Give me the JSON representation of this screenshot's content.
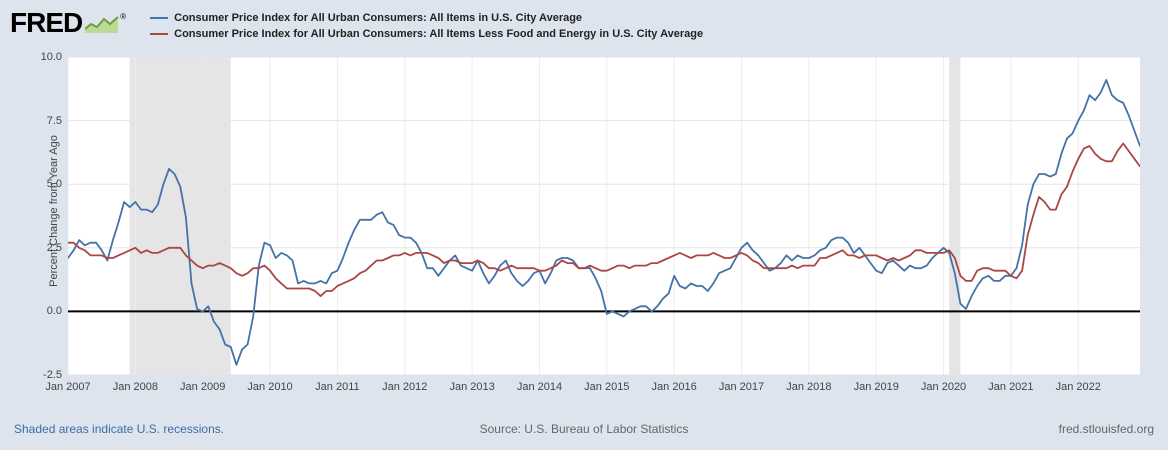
{
  "header": {
    "logo_text": "FRED",
    "registered_mark": "®"
  },
  "legend": {
    "items": [
      {
        "label": "Consumer Price Index for All Urban Consumers: All Items in U.S. City Average",
        "color": "#4572a7"
      },
      {
        "label": "Consumer Price Index for All Urban Consumers: All Items Less Food and Energy in U.S. City Average",
        "color": "#aa4643"
      }
    ]
  },
  "footer": {
    "recession_note": "Shaded areas indicate U.S. recessions.",
    "source": "Source: U.S. Bureau of Labor Statistics",
    "site": "fred.stlouisfed.org"
  },
  "chart_data": {
    "type": "line",
    "title": "",
    "xlabel": "",
    "ylabel": "Percent Change from Year Ago",
    "ylim": [
      -2.5,
      10.0
    ],
    "y_ticks": [
      10.0,
      7.5,
      5.0,
      2.5,
      0.0,
      -2.5
    ],
    "x_start": "2007-01",
    "x_end": "2022-12",
    "frequency": "monthly",
    "x_tick_labels": [
      "Jan 2007",
      "Jan 2008",
      "Jan 2009",
      "Jan 2010",
      "Jan 2011",
      "Jan 2012",
      "Jan 2013",
      "Jan 2014",
      "Jan 2015",
      "Jan 2016",
      "Jan 2017",
      "Jan 2018",
      "Jan 2019",
      "Jan 2020",
      "Jan 2021",
      "Jan 2022"
    ],
    "grid": true,
    "legend_position": "top",
    "recessions": [
      {
        "start": "2007-12",
        "end": "2009-06"
      },
      {
        "start": "2020-02",
        "end": "2020-04"
      }
    ],
    "recession_color": "#e5e5e5",
    "zero_line_color": "#000000",
    "plot_background": "#ffffff",
    "series": [
      {
        "name": "Consumer Price Index for All Urban Consumers: All Items in U.S. City Average",
        "color": "#4572a7",
        "values": [
          2.1,
          2.4,
          2.8,
          2.6,
          2.7,
          2.7,
          2.4,
          2.0,
          2.8,
          3.5,
          4.3,
          4.1,
          4.3,
          4.0,
          4.0,
          3.9,
          4.2,
          5.0,
          5.6,
          5.4,
          4.9,
          3.7,
          1.1,
          0.1,
          0.0,
          0.2,
          -0.4,
          -0.7,
          -1.3,
          -1.4,
          -2.1,
          -1.5,
          -1.3,
          -0.2,
          1.8,
          2.7,
          2.6,
          2.1,
          2.3,
          2.2,
          2.0,
          1.1,
          1.2,
          1.1,
          1.1,
          1.2,
          1.1,
          1.5,
          1.6,
          2.1,
          2.7,
          3.2,
          3.6,
          3.6,
          3.6,
          3.8,
          3.9,
          3.5,
          3.4,
          3.0,
          2.9,
          2.9,
          2.7,
          2.3,
          1.7,
          1.7,
          1.4,
          1.7,
          2.0,
          2.2,
          1.8,
          1.7,
          1.6,
          2.0,
          1.5,
          1.1,
          1.4,
          1.8,
          2.0,
          1.5,
          1.2,
          1.0,
          1.2,
          1.5,
          1.6,
          1.1,
          1.5,
          2.0,
          2.1,
          2.1,
          2.0,
          1.7,
          1.7,
          1.7,
          1.3,
          0.8,
          -0.1,
          0.0,
          -0.1,
          -0.2,
          0.0,
          0.1,
          0.2,
          0.2,
          0.0,
          0.2,
          0.5,
          0.7,
          1.4,
          1.0,
          0.9,
          1.1,
          1.0,
          1.0,
          0.8,
          1.1,
          1.5,
          1.6,
          1.7,
          2.1,
          2.5,
          2.7,
          2.4,
          2.2,
          1.9,
          1.6,
          1.7,
          1.9,
          2.2,
          2.0,
          2.2,
          2.1,
          2.1,
          2.2,
          2.4,
          2.5,
          2.8,
          2.9,
          2.9,
          2.7,
          2.3,
          2.5,
          2.2,
          1.9,
          1.6,
          1.5,
          1.9,
          2.0,
          1.8,
          1.6,
          1.8,
          1.7,
          1.7,
          1.8,
          2.1,
          2.3,
          2.5,
          2.3,
          1.5,
          0.3,
          0.1,
          0.6,
          1.0,
          1.3,
          1.4,
          1.2,
          1.2,
          1.4,
          1.4,
          1.7,
          2.6,
          4.2,
          5.0,
          5.4,
          5.4,
          5.3,
          5.4,
          6.2,
          6.8,
          7.0,
          7.5,
          7.9,
          8.5,
          8.3,
          8.6,
          9.1,
          8.5,
          8.3,
          8.2,
          7.7,
          7.1,
          6.5
        ]
      },
      {
        "name": "Consumer Price Index for All Urban Consumers: All Items Less Food and Energy in U.S. City Average",
        "color": "#aa4643",
        "values": [
          2.7,
          2.7,
          2.5,
          2.4,
          2.2,
          2.2,
          2.2,
          2.1,
          2.1,
          2.2,
          2.3,
          2.4,
          2.5,
          2.3,
          2.4,
          2.3,
          2.3,
          2.4,
          2.5,
          2.5,
          2.5,
          2.2,
          2.0,
          1.8,
          1.7,
          1.8,
          1.8,
          1.9,
          1.8,
          1.7,
          1.5,
          1.4,
          1.5,
          1.7,
          1.7,
          1.8,
          1.6,
          1.3,
          1.1,
          0.9,
          0.9,
          0.9,
          0.9,
          0.9,
          0.8,
          0.6,
          0.8,
          0.8,
          1.0,
          1.1,
          1.2,
          1.3,
          1.5,
          1.6,
          1.8,
          2.0,
          2.0,
          2.1,
          2.2,
          2.2,
          2.3,
          2.2,
          2.3,
          2.3,
          2.3,
          2.2,
          2.1,
          1.9,
          2.0,
          2.0,
          1.9,
          1.9,
          1.9,
          2.0,
          1.9,
          1.7,
          1.7,
          1.6,
          1.7,
          1.8,
          1.7,
          1.7,
          1.7,
          1.7,
          1.6,
          1.6,
          1.7,
          1.8,
          2.0,
          1.9,
          1.9,
          1.7,
          1.7,
          1.8,
          1.7,
          1.6,
          1.6,
          1.7,
          1.8,
          1.8,
          1.7,
          1.8,
          1.8,
          1.8,
          1.9,
          1.9,
          2.0,
          2.1,
          2.2,
          2.3,
          2.2,
          2.1,
          2.2,
          2.2,
          2.2,
          2.3,
          2.2,
          2.1,
          2.1,
          2.2,
          2.3,
          2.2,
          2.0,
          1.9,
          1.7,
          1.7,
          1.7,
          1.7,
          1.7,
          1.8,
          1.7,
          1.8,
          1.8,
          1.8,
          2.1,
          2.1,
          2.2,
          2.3,
          2.4,
          2.2,
          2.2,
          2.1,
          2.2,
          2.2,
          2.2,
          2.1,
          2.0,
          2.1,
          2.0,
          2.1,
          2.2,
          2.4,
          2.4,
          2.3,
          2.3,
          2.3,
          2.3,
          2.4,
          2.1,
          1.4,
          1.2,
          1.2,
          1.6,
          1.7,
          1.7,
          1.6,
          1.6,
          1.6,
          1.4,
          1.3,
          1.6,
          3.0,
          3.8,
          4.5,
          4.3,
          4.0,
          4.0,
          4.6,
          4.9,
          5.5,
          6.0,
          6.4,
          6.5,
          6.2,
          6.0,
          5.9,
          5.9,
          6.3,
          6.6,
          6.3,
          6.0,
          5.7
        ]
      }
    ]
  }
}
